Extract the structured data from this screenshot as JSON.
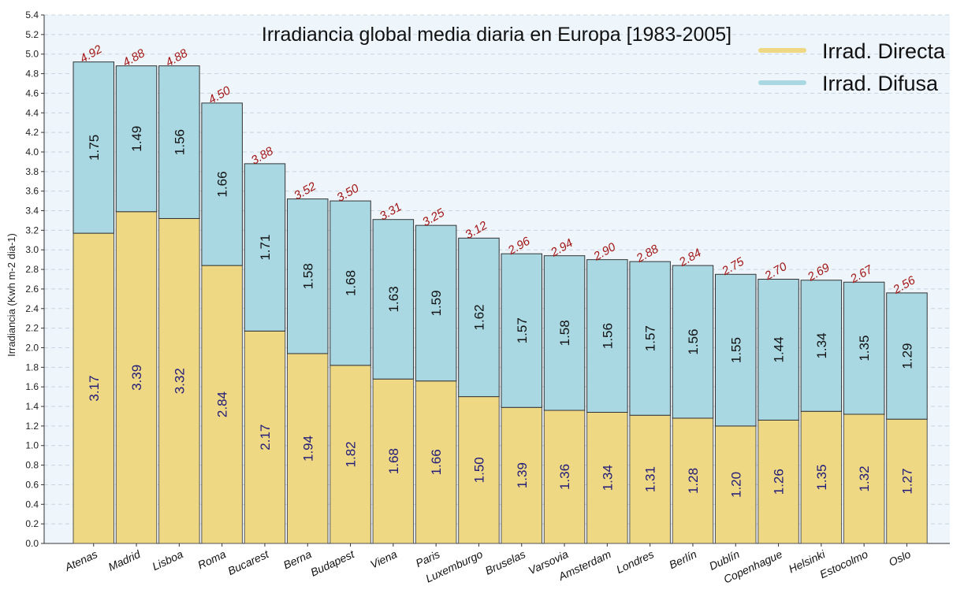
{
  "chart_data": {
    "type": "bar",
    "stacked": true,
    "title": "Irradiancia global media diaria en Europa [1983-2005]",
    "ylabel": "Irradiancia (Kwh m-2 dia-1)",
    "xlabel": "",
    "ylim": [
      0,
      5.4
    ],
    "ytick_step": 0.2,
    "grid": true,
    "legend_position": "top-right",
    "categories": [
      "Atenas",
      "Madrid",
      "Lisboa",
      "Roma",
      "Bucarest",
      "Berna",
      "Budapest",
      "Viena",
      "Paris",
      "Luxemburgo",
      "Bruselas",
      "Varsovia",
      "Amsterdam",
      "Londres",
      "Berlín",
      "Dublín",
      "Copenhague",
      "Helsinki",
      "Estocolmo",
      "Oslo"
    ],
    "series": [
      {
        "name": "Irrad. Directa",
        "color": "#efd884",
        "label_color": "#1f1a7a",
        "values": [
          3.17,
          3.39,
          3.32,
          2.84,
          2.17,
          1.94,
          1.82,
          1.68,
          1.66,
          1.5,
          1.39,
          1.36,
          1.34,
          1.31,
          1.28,
          1.2,
          1.26,
          1.35,
          1.32,
          1.27
        ],
        "labels": [
          "3.17",
          "3.39",
          "3.32",
          "2.84",
          "2.17",
          "1.94",
          "1.82",
          "1.68",
          "1.66",
          "1.50",
          "1.39",
          "1.36",
          "1.34",
          "1.31",
          "1.28",
          "1.20",
          "1.26",
          "1.35",
          "1.32",
          "1.27"
        ]
      },
      {
        "name": "Irrad. Difusa",
        "color": "#a9d8e3",
        "label_color": "#111111",
        "values": [
          1.75,
          1.49,
          1.56,
          1.66,
          1.71,
          1.58,
          1.68,
          1.63,
          1.59,
          1.62,
          1.57,
          1.58,
          1.56,
          1.57,
          1.56,
          1.55,
          1.44,
          1.34,
          1.35,
          1.29
        ],
        "labels": [
          "1.75",
          "1.49",
          "1.56",
          "1.66",
          "1.71",
          "1.58",
          "1.68",
          "1.63",
          "1.59",
          "1.62",
          "1.57",
          "1.58",
          "1.56",
          "1.57",
          "1.56",
          "1.55",
          "1.44",
          "1.34",
          "1.35",
          "1.29"
        ]
      }
    ],
    "totals": [
      4.92,
      4.88,
      4.88,
      4.5,
      3.88,
      3.52,
      3.5,
      3.31,
      3.25,
      3.12,
      2.96,
      2.94,
      2.9,
      2.88,
      2.84,
      2.75,
      2.7,
      2.69,
      2.67,
      2.56
    ],
    "total_labels": [
      "4.92",
      "4.88",
      "4.88",
      "4.50",
      "3.88",
      "3.52",
      "3.50",
      "3.31",
      "3.25",
      "3.12",
      "2.96",
      "2.94",
      "2.90",
      "2.88",
      "2.84",
      "2.75",
      "2.70",
      "2.69",
      "2.67",
      "2.56"
    ],
    "total_label_color": "#a31515",
    "background_color": "#eef6fc",
    "grid_color": "#c8d4de"
  }
}
